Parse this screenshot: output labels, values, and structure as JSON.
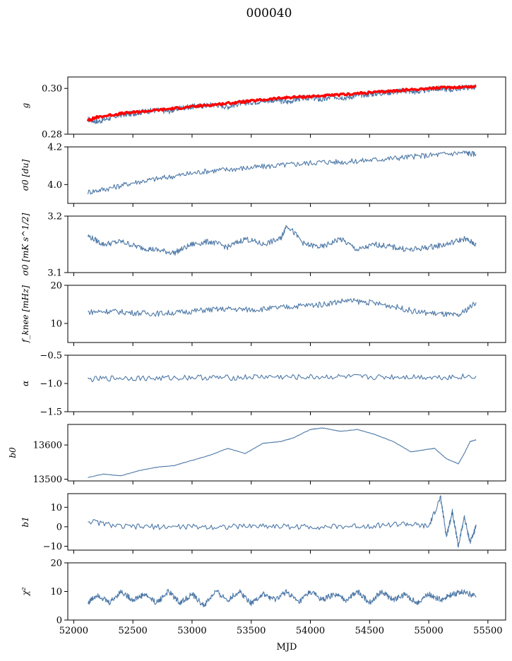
{
  "figure_title": "000040",
  "colors": {
    "series": "#4e79a7",
    "model": "#ff0000",
    "axes": "#000000"
  },
  "chart_data": [
    {
      "type": "line",
      "ylabel": "g",
      "ylim": [
        0.28,
        0.305
      ],
      "yticks": [
        0.28,
        0.3
      ],
      "yticklabels": [
        "0.28",
        "0.30"
      ],
      "xlim": [
        51950,
        55650
      ],
      "series": [
        {
          "role": "data",
          "color": "#4e79a7",
          "x": [
            52120,
            52200,
            52300,
            52400,
            52500,
            52600,
            52700,
            52800,
            52900,
            53000,
            53100,
            53200,
            53300,
            53400,
            53500,
            53600,
            53700,
            53800,
            53900,
            54000,
            54100,
            54200,
            54300,
            54400,
            54500,
            54600,
            54700,
            54800,
            54900,
            55000,
            55100,
            55200,
            55300,
            55400
          ],
          "y": [
            0.2865,
            0.2855,
            0.287,
            0.2885,
            0.289,
            0.29,
            0.2905,
            0.29,
            0.2915,
            0.292,
            0.2925,
            0.293,
            0.292,
            0.2935,
            0.294,
            0.2945,
            0.295,
            0.294,
            0.2955,
            0.296,
            0.295,
            0.2965,
            0.296,
            0.297,
            0.2975,
            0.298,
            0.2985,
            0.299,
            0.2985,
            0.2995,
            0.3,
            0.2995,
            0.3005,
            0.3005
          ]
        },
        {
          "role": "model",
          "color": "#ff0000",
          "x": [
            52120,
            52200,
            52400,
            52600,
            52800,
            53000,
            53200,
            53400,
            53600,
            53800,
            54000,
            54200,
            54400,
            54600,
            54800,
            55000,
            55200,
            55400
          ],
          "y": [
            0.286,
            0.2875,
            0.289,
            0.29,
            0.291,
            0.292,
            0.293,
            0.294,
            0.295,
            0.296,
            0.2965,
            0.297,
            0.2978,
            0.2985,
            0.2993,
            0.3,
            0.3005,
            0.3008
          ]
        }
      ]
    },
    {
      "type": "line",
      "ylabel": "σ0 [du]",
      "ylim": [
        3.9,
        4.2
      ],
      "yticks": [
        4.0,
        4.2
      ],
      "yticklabels": [
        "4.0",
        "4.2"
      ],
      "xlim": [
        51950,
        55650
      ],
      "series": [
        {
          "role": "data",
          "color": "#4e79a7",
          "x": [
            52120,
            52300,
            52500,
            52700,
            52900,
            53100,
            53300,
            53500,
            53700,
            53900,
            54100,
            54300,
            54500,
            54700,
            54900,
            55100,
            55300,
            55400
          ],
          "y": [
            3.96,
            3.98,
            4.01,
            4.03,
            4.05,
            4.07,
            4.08,
            4.09,
            4.1,
            4.11,
            4.12,
            4.12,
            4.13,
            4.14,
            4.15,
            4.16,
            4.17,
            4.16
          ]
        }
      ]
    },
    {
      "type": "line",
      "ylabel": "σ0 [mK s^1/2]",
      "ylim": [
        3.1,
        3.2
      ],
      "yticks": [
        3.1,
        3.2
      ],
      "yticklabels": [
        "3.1",
        "3.2"
      ],
      "xlim": [
        51950,
        55650
      ],
      "series": [
        {
          "role": "data",
          "color": "#4e79a7",
          "x": [
            52120,
            52250,
            52400,
            52550,
            52700,
            52850,
            53000,
            53150,
            53300,
            53450,
            53600,
            53750,
            53800,
            53950,
            54100,
            54250,
            54400,
            54550,
            54700,
            54850,
            55000,
            55150,
            55300,
            55400
          ],
          "y": [
            3.165,
            3.15,
            3.155,
            3.145,
            3.14,
            3.135,
            3.15,
            3.155,
            3.145,
            3.16,
            3.15,
            3.16,
            3.185,
            3.15,
            3.145,
            3.16,
            3.14,
            3.15,
            3.145,
            3.14,
            3.145,
            3.15,
            3.16,
            3.15
          ]
        }
      ]
    },
    {
      "type": "line",
      "ylabel": "f_knee [mHz]",
      "ylim": [
        5,
        20
      ],
      "yticks": [
        10,
        20
      ],
      "yticklabels": [
        "10",
        "20"
      ],
      "xlim": [
        51950,
        55650
      ],
      "series": [
        {
          "role": "data",
          "color": "#4e79a7",
          "x": [
            52120,
            52300,
            52500,
            52700,
            52900,
            53100,
            53300,
            53500,
            53700,
            53900,
            54100,
            54300,
            54500,
            54700,
            54900,
            55100,
            55250,
            55400
          ],
          "y": [
            13.0,
            13.2,
            12.8,
            12.6,
            12.9,
            13.5,
            13.8,
            13.6,
            14.0,
            14.6,
            15.0,
            16.0,
            15.5,
            14.5,
            13.0,
            12.5,
            12.0,
            15.5
          ]
        }
      ]
    },
    {
      "type": "line",
      "ylabel": "α",
      "ylim": [
        -1.5,
        -0.5
      ],
      "yticks": [
        -1.5,
        -1.0,
        -0.5
      ],
      "yticklabels": [
        "−1.5",
        "−1.0",
        "−0.5"
      ],
      "xlim": [
        51950,
        55650
      ],
      "series": [
        {
          "role": "data",
          "color": "#4e79a7",
          "x": [
            52120,
            52400,
            52700,
            53000,
            53300,
            53600,
            53900,
            54200,
            54500,
            54800,
            55100,
            55400
          ],
          "y": [
            -0.93,
            -0.9,
            -0.91,
            -0.89,
            -0.9,
            -0.88,
            -0.89,
            -0.88,
            -0.89,
            -0.88,
            -0.89,
            -0.87
          ]
        }
      ]
    },
    {
      "type": "line",
      "ylabel": "b0",
      "ylim": [
        13495,
        13660
      ],
      "yticks": [
        13500,
        13600
      ],
      "yticklabels": [
        "13500",
        "13600"
      ],
      "xlim": [
        51950,
        55650
      ],
      "series": [
        {
          "role": "data",
          "color": "#4e79a7",
          "x": [
            52120,
            52250,
            52400,
            52550,
            52700,
            52850,
            53000,
            53150,
            53300,
            53450,
            53600,
            53750,
            53850,
            54000,
            54100,
            54250,
            54400,
            54550,
            54700,
            54850,
            54950,
            55050,
            55150,
            55250,
            55300,
            55350,
            55400
          ],
          "y": [
            13505,
            13515,
            13510,
            13525,
            13535,
            13540,
            13555,
            13570,
            13590,
            13575,
            13605,
            13610,
            13620,
            13645,
            13650,
            13640,
            13645,
            13630,
            13610,
            13580,
            13585,
            13590,
            13560,
            13545,
            13575,
            13610,
            13615
          ]
        }
      ]
    },
    {
      "type": "line",
      "ylabel": "b1",
      "ylim": [
        -12,
        17
      ],
      "yticks": [
        -10,
        0,
        10
      ],
      "yticklabels": [
        "−10",
        "0",
        "10"
      ],
      "xlim": [
        51950,
        55650
      ],
      "series": [
        {
          "role": "data",
          "color": "#4e79a7",
          "x": [
            52120,
            52400,
            52700,
            53000,
            53300,
            53600,
            53900,
            54200,
            54500,
            54800,
            55000,
            55100,
            55150,
            55200,
            55250,
            55300,
            55350,
            55400
          ],
          "y": [
            3,
            0,
            0,
            0,
            0,
            0.5,
            0,
            0,
            0.5,
            1.5,
            0,
            15,
            -5,
            8,
            -10,
            5,
            -8,
            0
          ]
        }
      ]
    },
    {
      "type": "line",
      "ylabel": "χ²",
      "ylim": [
        0,
        20
      ],
      "yticks": [
        0,
        10,
        20
      ],
      "yticklabels": [
        "0",
        "10",
        "20"
      ],
      "xlabel": "MJD",
      "xticks": [
        52000,
        52500,
        53000,
        53500,
        54000,
        54500,
        55000,
        55500
      ],
      "xticklabels": [
        "52000",
        "52500",
        "53000",
        "53500",
        "54000",
        "54500",
        "55000",
        "55500"
      ],
      "xlim": [
        51950,
        55650
      ],
      "series": [
        {
          "role": "data",
          "color": "#4e79a7",
          "x": [
            52120,
            52200,
            52300,
            52400,
            52500,
            52600,
            52700,
            52800,
            52900,
            53000,
            53100,
            53200,
            53300,
            53400,
            53500,
            53600,
            53700,
            53800,
            53900,
            54000,
            54100,
            54200,
            54300,
            54400,
            54500,
            54600,
            54700,
            54800,
            54900,
            55000,
            55100,
            55200,
            55300,
            55400
          ],
          "y": [
            6,
            9,
            6,
            10,
            7,
            9,
            6,
            10,
            6,
            9,
            5,
            10,
            7,
            10,
            6,
            9,
            7,
            10,
            6,
            10,
            7,
            9,
            7,
            10,
            6,
            10,
            7,
            9,
            6,
            9,
            7,
            9,
            10,
            8
          ]
        }
      ]
    }
  ]
}
